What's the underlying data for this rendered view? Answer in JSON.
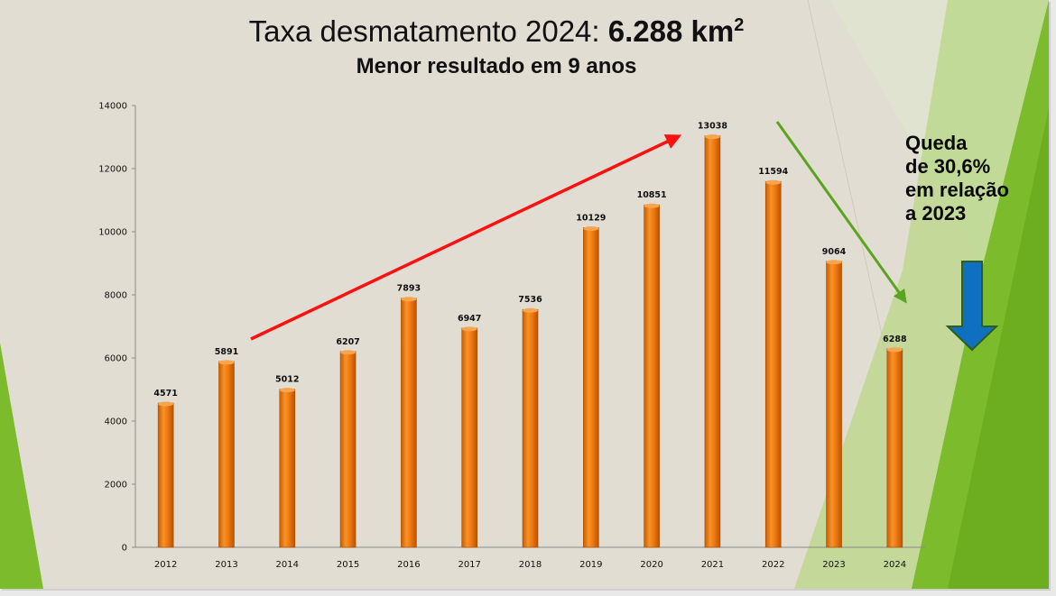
{
  "title": {
    "prefix": "Taxa desmatamento 2024: ",
    "value": "6.288 km",
    "superscript": "2",
    "subtitle": "Menor resultado em 9 anos"
  },
  "callout": {
    "lines": [
      "Queda",
      "de 30,6%",
      "em relação",
      "a 2023"
    ]
  },
  "colors": {
    "bar": "#f07a10",
    "bar_dark": "#b95400",
    "rising_arrow": "#ff1010",
    "falling_arrow": "#5aa420",
    "down_arrow": "#0f6fc0",
    "green_deco": "#7cbb2c"
  },
  "chart_data": {
    "type": "bar",
    "categories": [
      "2012",
      "2013",
      "2014",
      "2015",
      "2016",
      "2017",
      "2018",
      "2019",
      "2020",
      "2021",
      "2022",
      "2023",
      "2024"
    ],
    "values": [
      4571,
      5891,
      5012,
      6207,
      7893,
      6947,
      7536,
      10129,
      10851,
      13038,
      11594,
      9064,
      6288
    ],
    "ylim": [
      0,
      14000
    ],
    "yticks": [
      0,
      2000,
      4000,
      6000,
      8000,
      10000,
      12000,
      14000
    ],
    "title": "Taxa desmatamento 2024: 6.288 km²",
    "subtitle": "Menor resultado em 9 anos",
    "xlabel": "",
    "ylabel": "",
    "data_labels": true,
    "grid": false
  }
}
